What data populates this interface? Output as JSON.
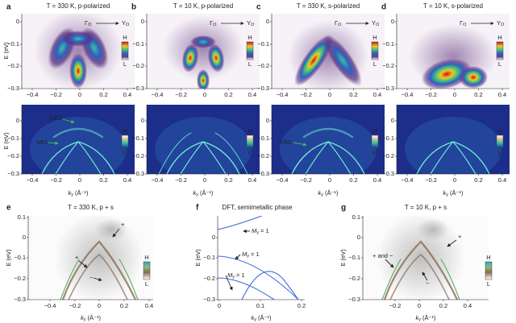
{
  "top_row": {
    "y_axis_label": "E (eV)",
    "y_ticks": [
      "0",
      "−0.1",
      "−0.2",
      "−0.3"
    ],
    "x_ticks": [
      "−0.4",
      "−0.2",
      "0",
      "0.2",
      "0.4"
    ],
    "path": {
      "from": "Γ",
      "to": "Y",
      "subscript": "O"
    },
    "colorbar": {
      "high": "H",
      "low": "L"
    },
    "panels": [
      {
        "label": "a",
        "title": "T = 330 K, p-polarized"
      },
      {
        "label": "b",
        "title": "T = 10 K, p-polarized"
      },
      {
        "label": "c",
        "title": "T = 330 K, s-polarized"
      },
      {
        "label": "d",
        "title": "T = 10 K, s-polarized"
      }
    ]
  },
  "middle_row": {
    "y_axis_label": "E (eV)",
    "y_ticks": [
      "0",
      "−0.1",
      "−0.2",
      "−0.3"
    ],
    "x_ticks": [
      "−0.4",
      "−0.2",
      "0",
      "0.2",
      "0.4"
    ],
    "x_axis_label": {
      "var": "k",
      "sub": "y",
      "unit": "(Å⁻¹)"
    },
    "colorbar": {
      "high": "H",
      "low": "L"
    },
    "annotations": [
      "CB1",
      "VB1",
      "VB2"
    ]
  },
  "bottom_row": {
    "y_axis_label": "E (eV)",
    "x_axis_label": {
      "var": "k",
      "sub": "y",
      "unit": "(Å⁻¹)"
    },
    "colorbar": {
      "high": "H",
      "low": "L"
    },
    "panels": [
      {
        "label": "e",
        "title": "T = 330 K, p + s",
        "y_ticks": [
          "0.1",
          "0",
          "−0.1",
          "−0.2",
          "−0.3"
        ],
        "x_ticks": [
          "−0.4",
          "−0.2",
          "0",
          "0.2",
          "0.4"
        ],
        "annotations": [
          "+",
          "+",
          "−"
        ]
      },
      {
        "label": "f",
        "title": "DFT, semimetallic phase",
        "y_ticks": [
          "0",
          "−0.1",
          "−0.2",
          "−0.3"
        ],
        "x_ticks": [
          "0",
          "0.1",
          "0.2"
        ],
        "annotation": {
          "var": "M",
          "sub": "y",
          "rest": "= 1"
        }
      },
      {
        "label": "g",
        "title": "T = 10 K, p + s",
        "y_ticks": [
          "0.1",
          "0",
          "−0.1",
          "−0.2",
          "−0.3"
        ],
        "x_ticks": [
          "−0.2",
          "0",
          "0.2",
          "0.4"
        ],
        "annotations": [
          "+ and −",
          "+",
          "−"
        ]
      }
    ]
  }
}
